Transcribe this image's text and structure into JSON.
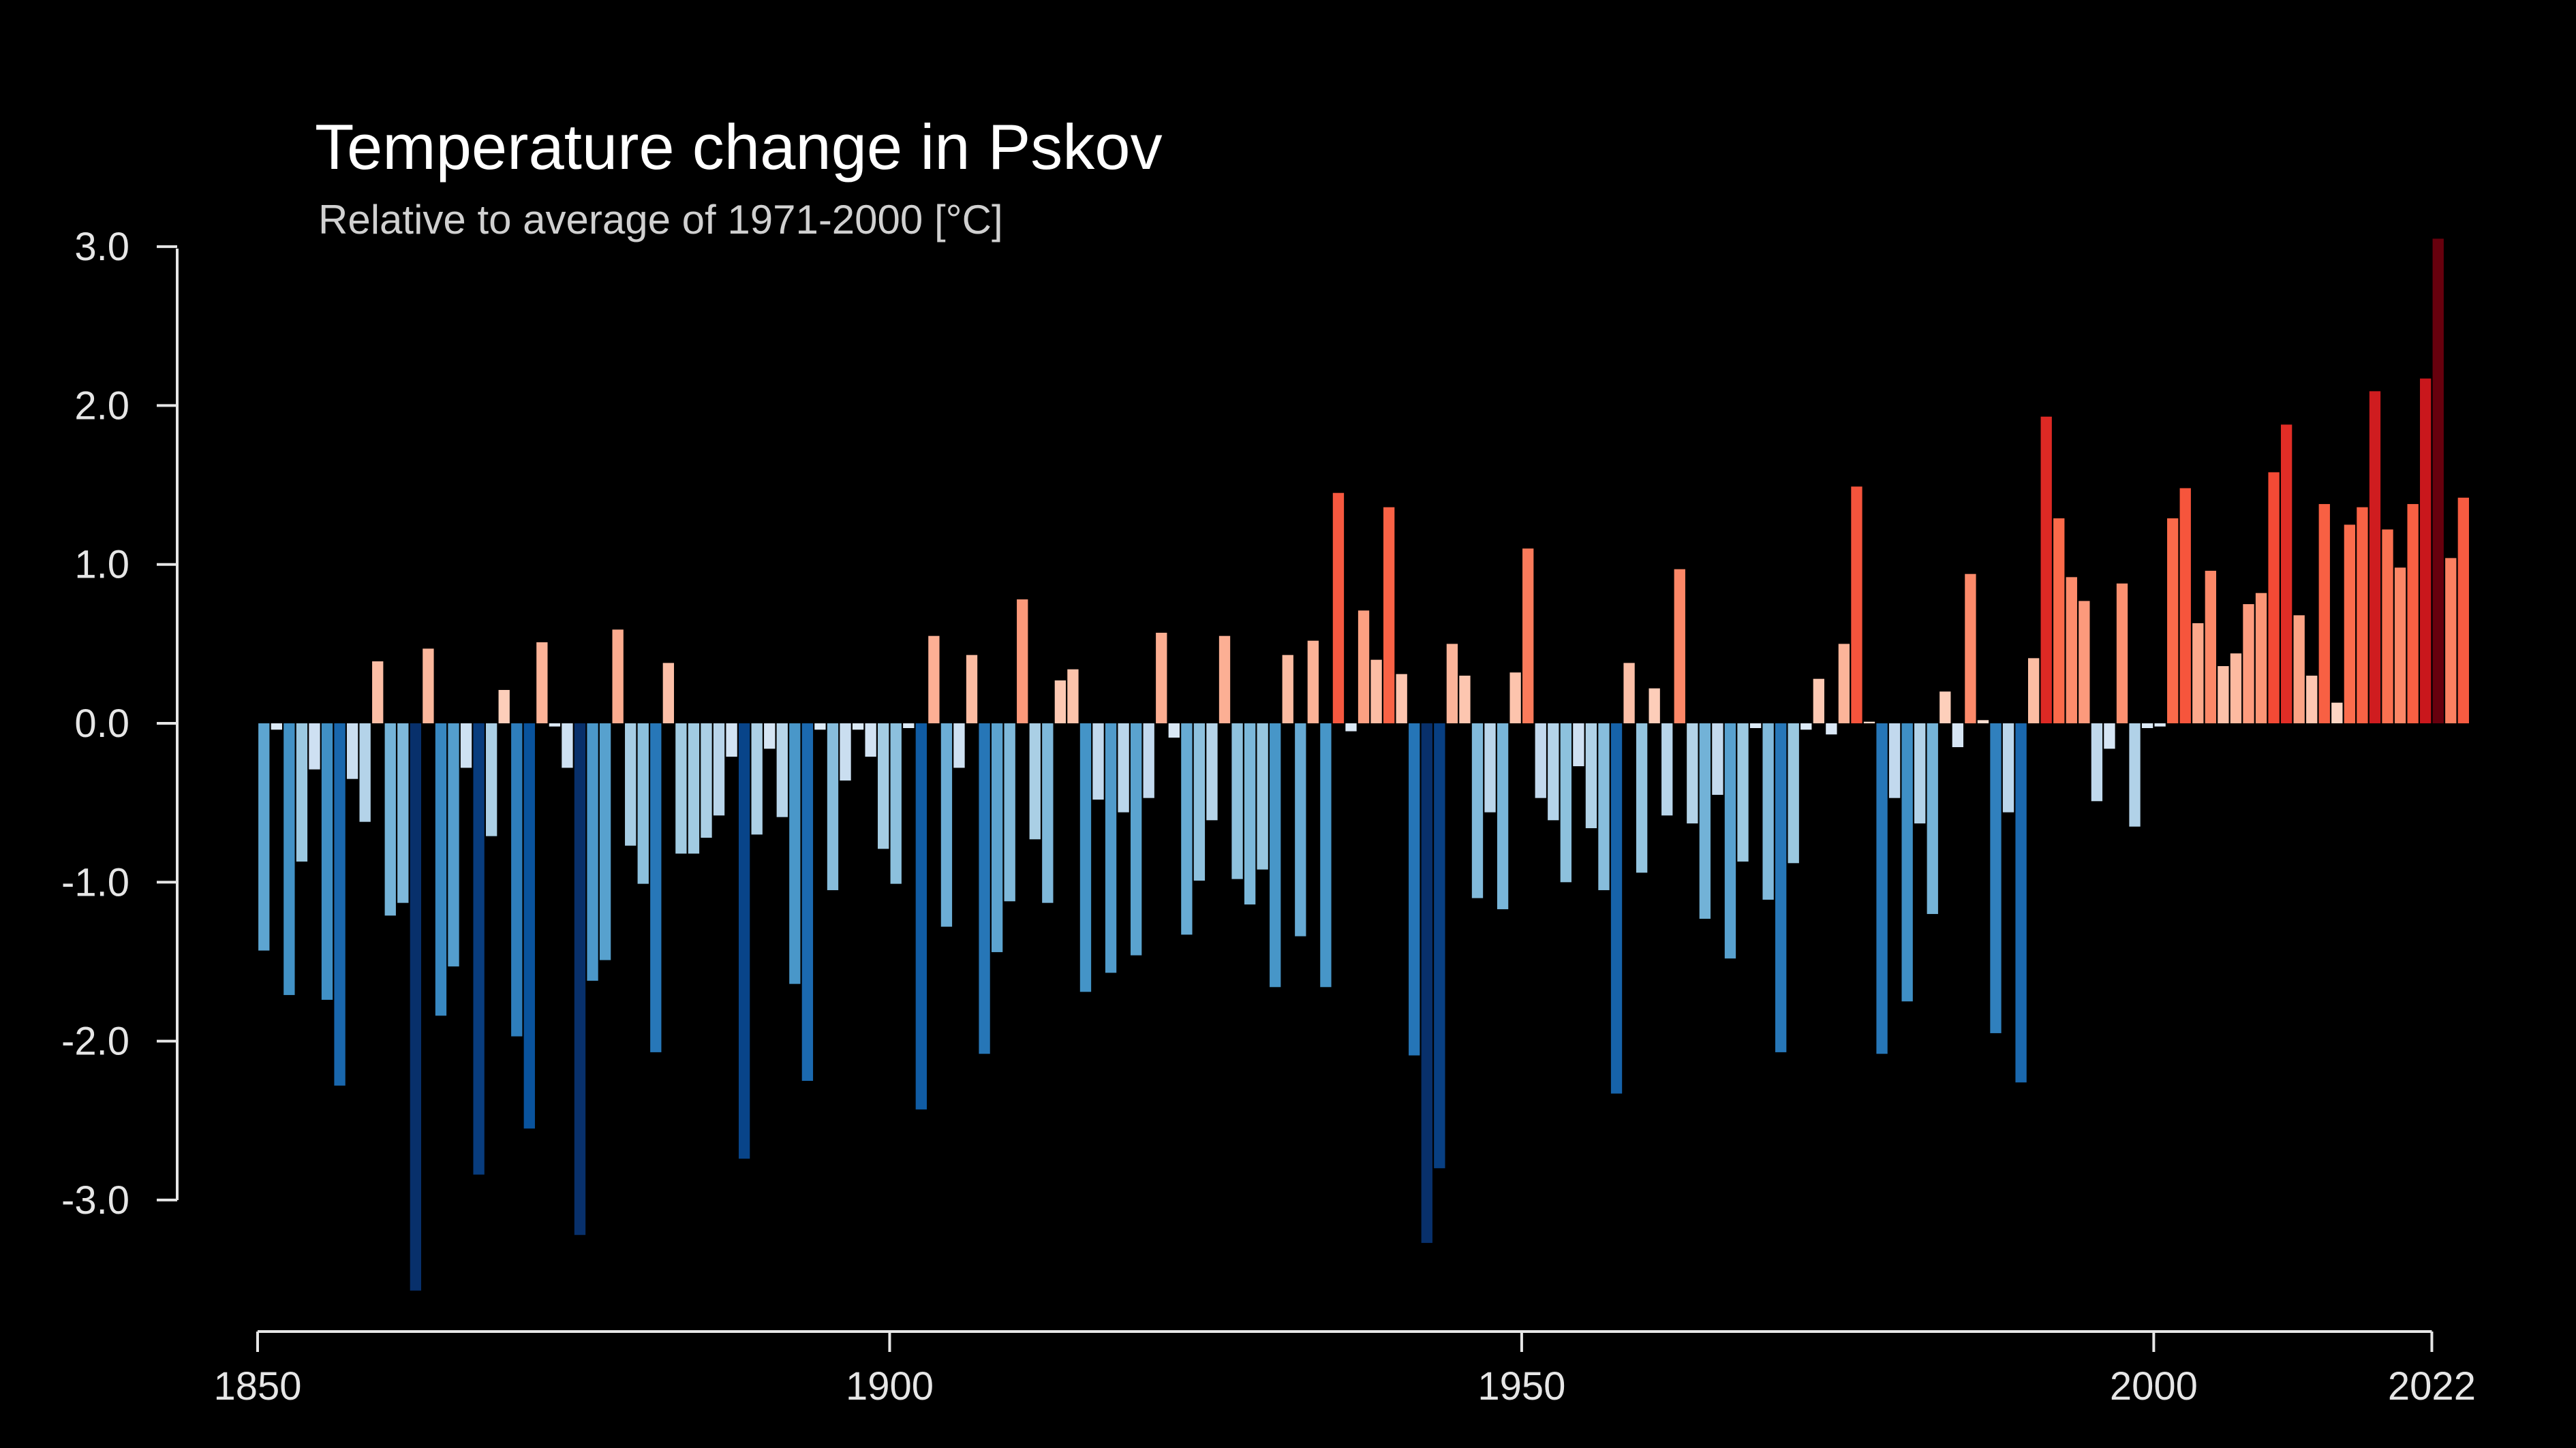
{
  "chart_data": {
    "type": "bar",
    "title": "Temperature change in Pskov",
    "subtitle": "Relative to average of 1971-2000  [°C]",
    "xlabel": "",
    "ylabel": "",
    "x_start": 1850,
    "x_end": 2022,
    "xlim": [
      1850,
      2022
    ],
    "ylim": [
      -3.6,
      3.1
    ],
    "x_ticks": [
      1850,
      1900,
      1950,
      2000,
      2022
    ],
    "y_ticks": [
      3.0,
      2.0,
      1.0,
      0.0,
      -1.0,
      -2.0,
      -3.0
    ],
    "x_tick_labels": [
      "1850",
      "1900",
      "1950",
      "2000",
      "2022"
    ],
    "y_tick_labels": [
      "3.0",
      "2.0",
      "1.0",
      "0.0",
      "-1.0",
      "-2.0",
      "-3.0"
    ],
    "grid": false,
    "legend": "none",
    "color_scale": "diverging blue-red (cold blue, warm red)",
    "colors": {
      "background": "#000000",
      "cold_extreme": "#08306b",
      "cold_light": "#deebf7",
      "warm_light": "#fee0d2",
      "warm_extreme": "#67000d"
    },
    "values": [
      -1.43,
      -0.04,
      -1.71,
      -0.87,
      -0.29,
      -1.74,
      -2.28,
      -0.35,
      -0.62,
      0.39,
      -1.21,
      -1.13,
      -3.57,
      0.47,
      -1.84,
      -1.53,
      -0.28,
      -2.84,
      -0.71,
      0.21,
      -1.97,
      -2.55,
      0.51,
      -0.02,
      -0.28,
      -3.22,
      -1.62,
      -1.49,
      0.59,
      -0.77,
      -1.01,
      -2.07,
      0.38,
      -0.82,
      -0.82,
      -0.72,
      -0.58,
      -0.21,
      -2.74,
      -0.7,
      -0.16,
      -0.59,
      -1.64,
      -2.25,
      -0.04,
      -1.05,
      -0.36,
      -0.04,
      -0.21,
      -0.79,
      -1.01,
      -0.03,
      -2.43,
      0.55,
      -1.28,
      -0.28,
      0.43,
      -2.08,
      -1.44,
      -1.12,
      0.78,
      -0.73,
      -1.13,
      0.27,
      0.34,
      -1.69,
      -0.48,
      -1.57,
      -0.56,
      -1.46,
      -0.47,
      0.57,
      -0.09,
      -1.33,
      -0.99,
      -0.61,
      0.55,
      -0.98,
      -1.14,
      -0.92,
      -1.66,
      0.43,
      -1.34,
      0.52,
      -1.66,
      1.45,
      -0.05,
      0.71,
      0.4,
      1.36,
      0.31,
      -2.09,
      -3.27,
      -2.8,
      0.5,
      0.3,
      -1.1,
      -0.56,
      -1.17,
      0.32,
      1.1,
      -0.47,
      -0.61,
      -1.0,
      -0.27,
      -0.66,
      -1.05,
      -2.33,
      0.38,
      -0.94,
      0.22,
      -0.58,
      0.97,
      -0.63,
      -1.23,
      -0.45,
      -1.48,
      -0.87,
      -0.03,
      -1.11,
      -2.07,
      -0.88,
      -0.04,
      0.28,
      -0.07,
      0.5,
      1.49,
      0.01,
      -2.08,
      -0.47,
      -1.75,
      -0.63,
      -1.2,
      0.2,
      -0.15,
      0.94,
      0.02,
      -1.95,
      -0.56,
      -2.26,
      0.41,
      1.93,
      1.29,
      0.92,
      0.77,
      -0.49,
      -0.16,
      0.88,
      -0.65,
      -0.03,
      -0.02,
      1.29,
      1.48,
      0.63,
      0.96,
      0.36,
      0.44,
      0.75,
      0.82,
      1.58,
      1.88,
      0.68,
      0.3,
      1.38,
      0.13,
      1.25,
      1.36,
      2.09,
      1.22,
      0.98,
      1.38,
      2.17,
      3.05,
      1.04,
      1.42
    ]
  }
}
